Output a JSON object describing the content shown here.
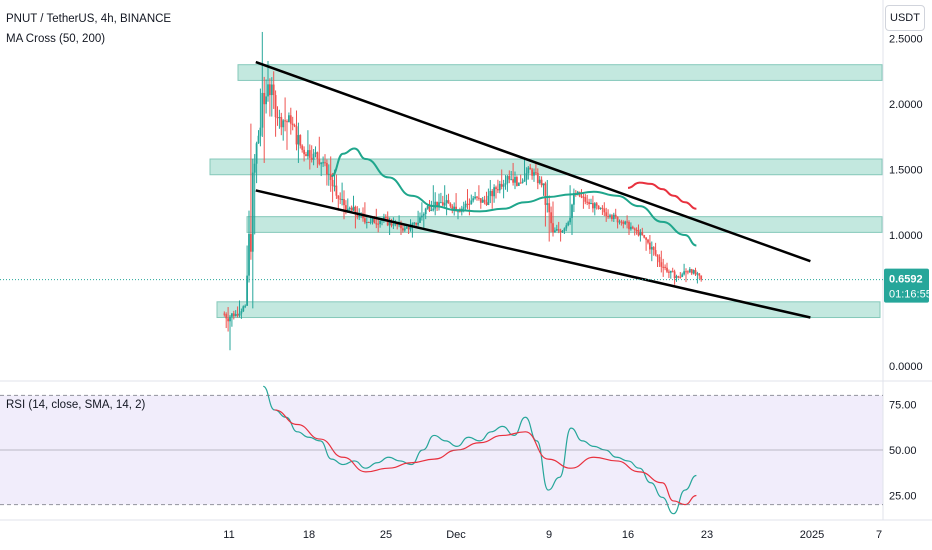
{
  "header": {
    "symbol": "PNUT / TetherUS, 4h, BINANCE",
    "indicator": "MA Cross (50, 200)",
    "currency_button": "USDT"
  },
  "rsi_panel": {
    "label": "RSI (14, close, SMA, 14, 2)"
  },
  "price_badge": {
    "price": "0.6592",
    "countdown": "01:16:55"
  },
  "colors": {
    "bull": "#26a69a",
    "bear": "#ef5350",
    "ma50": "#1fa68c",
    "ma200": "#e8313e",
    "zone": "#b9e4da",
    "zone_border": "#6fbfae",
    "rsi_line": "#26a69a",
    "rsi_ma": "#e8313e",
    "rsi_band": "#f1edfb",
    "trendline": "#000000"
  },
  "chart_data": [
    {
      "type": "candlestick",
      "title": "PNUT / TetherUS, 4h, BINANCE",
      "y_axis": {
        "ticks": [
          0.0,
          0.5,
          1.0,
          1.5,
          2.0,
          2.5
        ],
        "tick_labels": [
          "0.0000",
          "",
          "1.0000",
          "1.5000",
          "2.0000",
          "2.5000"
        ]
      },
      "x_axis": {
        "tick_labels": [
          "11",
          "18",
          "25",
          "Dec",
          "9",
          "16",
          "23",
          "2025",
          "7"
        ]
      },
      "last_price": 0.6592,
      "ohlc_approx_daily": [
        {
          "date": "Nov 11",
          "o": 0.4,
          "h": 0.45,
          "l": 0.12,
          "c": 0.38
        },
        {
          "date": "Nov 12",
          "o": 0.38,
          "h": 0.5,
          "l": 0.36,
          "c": 0.46
        },
        {
          "date": "Nov 13",
          "o": 0.46,
          "h": 1.85,
          "l": 0.44,
          "c": 1.7
        },
        {
          "date": "Nov 14",
          "o": 1.7,
          "h": 2.55,
          "l": 1.55,
          "c": 2.15
        },
        {
          "date": "Nov 15",
          "o": 2.15,
          "h": 2.25,
          "l": 1.75,
          "c": 1.9
        },
        {
          "date": "Nov 16",
          "o": 1.9,
          "h": 2.05,
          "l": 1.65,
          "c": 1.85
        },
        {
          "date": "Nov 17",
          "o": 1.85,
          "h": 1.95,
          "l": 1.55,
          "c": 1.65
        },
        {
          "date": "Nov 18",
          "o": 1.65,
          "h": 1.8,
          "l": 1.5,
          "c": 1.62
        },
        {
          "date": "Nov 19",
          "o": 1.62,
          "h": 1.75,
          "l": 1.45,
          "c": 1.55
        },
        {
          "date": "Nov 20",
          "o": 1.55,
          "h": 1.6,
          "l": 1.25,
          "c": 1.3
        },
        {
          "date": "Nov 21",
          "o": 1.3,
          "h": 1.4,
          "l": 1.12,
          "c": 1.2
        },
        {
          "date": "Nov 22",
          "o": 1.2,
          "h": 1.3,
          "l": 1.05,
          "c": 1.15
        },
        {
          "date": "Nov 23",
          "o": 1.15,
          "h": 1.25,
          "l": 1.05,
          "c": 1.1
        },
        {
          "date": "Nov 24",
          "o": 1.1,
          "h": 1.2,
          "l": 1.02,
          "c": 1.12
        },
        {
          "date": "Nov 25",
          "o": 1.12,
          "h": 1.18,
          "l": 1.0,
          "c": 1.08
        },
        {
          "date": "Nov 26",
          "o": 1.08,
          "h": 1.15,
          "l": 1.0,
          "c": 1.05
        },
        {
          "date": "Nov 27",
          "o": 1.05,
          "h": 1.12,
          "l": 0.98,
          "c": 1.08
        },
        {
          "date": "Nov 28",
          "o": 1.08,
          "h": 1.25,
          "l": 1.05,
          "c": 1.22
        },
        {
          "date": "Nov 29",
          "o": 1.22,
          "h": 1.38,
          "l": 1.15,
          "c": 1.25
        },
        {
          "date": "Nov 30",
          "o": 1.25,
          "h": 1.38,
          "l": 1.15,
          "c": 1.22
        },
        {
          "date": "Dec 1",
          "o": 1.22,
          "h": 1.32,
          "l": 1.12,
          "c": 1.2
        },
        {
          "date": "Dec 2",
          "o": 1.2,
          "h": 1.35,
          "l": 1.15,
          "c": 1.28
        },
        {
          "date": "Dec 3",
          "o": 1.28,
          "h": 1.38,
          "l": 1.2,
          "c": 1.25
        },
        {
          "date": "Dec 4",
          "o": 1.25,
          "h": 1.42,
          "l": 1.2,
          "c": 1.35
        },
        {
          "date": "Dec 5",
          "o": 1.35,
          "h": 1.5,
          "l": 1.28,
          "c": 1.45
        },
        {
          "date": "Dec 6",
          "o": 1.45,
          "h": 1.55,
          "l": 1.35,
          "c": 1.4
        },
        {
          "date": "Dec 7",
          "o": 1.4,
          "h": 1.58,
          "l": 1.38,
          "c": 1.5
        },
        {
          "date": "Dec 8",
          "o": 1.5,
          "h": 1.56,
          "l": 1.35,
          "c": 1.38
        },
        {
          "date": "Dec 9",
          "o": 1.38,
          "h": 1.42,
          "l": 0.95,
          "c": 1.02
        },
        {
          "date": "Dec 10",
          "o": 1.02,
          "h": 1.1,
          "l": 0.95,
          "c": 1.05
        },
        {
          "date": "Dec 11",
          "o": 1.05,
          "h": 1.38,
          "l": 1.0,
          "c": 1.32
        },
        {
          "date": "Dec 12",
          "o": 1.32,
          "h": 1.35,
          "l": 1.2,
          "c": 1.25
        },
        {
          "date": "Dec 13",
          "o": 1.25,
          "h": 1.3,
          "l": 1.15,
          "c": 1.2
        },
        {
          "date": "Dec 14",
          "o": 1.2,
          "h": 1.25,
          "l": 1.1,
          "c": 1.15
        },
        {
          "date": "Dec 15",
          "o": 1.15,
          "h": 1.2,
          "l": 1.05,
          "c": 1.1
        },
        {
          "date": "Dec 16",
          "o": 1.1,
          "h": 1.15,
          "l": 1.0,
          "c": 1.05
        },
        {
          "date": "Dec 17",
          "o": 1.05,
          "h": 1.08,
          "l": 0.95,
          "c": 0.98
        },
        {
          "date": "Dec 18",
          "o": 0.98,
          "h": 1.0,
          "l": 0.8,
          "c": 0.85
        },
        {
          "date": "Dec 19",
          "o": 0.85,
          "h": 0.88,
          "l": 0.68,
          "c": 0.72
        },
        {
          "date": "Dec 20",
          "o": 0.72,
          "h": 0.75,
          "l": 0.62,
          "c": 0.68
        },
        {
          "date": "Dec 21",
          "o": 0.68,
          "h": 0.78,
          "l": 0.64,
          "c": 0.74
        },
        {
          "date": "Dec 22",
          "o": 0.74,
          "h": 0.75,
          "l": 0.63,
          "c": 0.6592
        }
      ],
      "moving_averages": {
        "ma50": [
          {
            "date": "Nov 20",
            "value": 1.45
          },
          {
            "date": "Nov 21",
            "value": 1.62
          },
          {
            "date": "Nov 22",
            "value": 1.66
          },
          {
            "date": "Nov 23",
            "value": 1.58
          },
          {
            "date": "Nov 25",
            "value": 1.44
          },
          {
            "date": "Nov 27",
            "value": 1.3
          },
          {
            "date": "Nov 29",
            "value": 1.22
          },
          {
            "date": "Dec 1",
            "value": 1.19
          },
          {
            "date": "Dec 3",
            "value": 1.18
          },
          {
            "date": "Dec 5",
            "value": 1.2
          },
          {
            "date": "Dec 7",
            "value": 1.25
          },
          {
            "date": "Dec 9",
            "value": 1.29
          },
          {
            "date": "Dec 11",
            "value": 1.31
          },
          {
            "date": "Dec 13",
            "value": 1.33
          },
          {
            "date": "Dec 15",
            "value": 1.3
          },
          {
            "date": "Dec 17",
            "value": 1.22
          },
          {
            "date": "Dec 19",
            "value": 1.1
          },
          {
            "date": "Dec 21",
            "value": 1.0
          },
          {
            "date": "Dec 22",
            "value": 0.92
          }
        ],
        "ma200": [
          {
            "date": "Dec 16",
            "value": 1.36
          },
          {
            "date": "Dec 17",
            "value": 1.4
          },
          {
            "date": "Dec 18",
            "value": 1.39
          },
          {
            "date": "Dec 19",
            "value": 1.35
          },
          {
            "date": "Dec 20",
            "value": 1.3
          },
          {
            "date": "Dec 21",
            "value": 1.25
          },
          {
            "date": "Dec 22",
            "value": 1.2
          }
        ]
      },
      "zones": [
        {
          "low": 2.18,
          "high": 2.3
        },
        {
          "low": 1.46,
          "high": 1.58
        },
        {
          "low": 1.02,
          "high": 1.14
        },
        {
          "low": 0.37,
          "high": 0.49
        }
      ],
      "trendlines": [
        {
          "from": {
            "date": "Nov 13",
            "value": 2.32
          },
          "to": {
            "date": "Jan 1",
            "value": 0.8
          }
        },
        {
          "from": {
            "date": "Nov 13",
            "value": 1.34
          },
          "to": {
            "date": "Jan 1",
            "value": 0.37
          }
        }
      ]
    },
    {
      "type": "line",
      "title": "RSI (14, close, SMA, 14, 2)",
      "y_axis": {
        "tick_labels": [
          "75.00",
          "50.00",
          "25.00"
        ],
        "ticks": [
          75,
          50,
          25
        ],
        "band": [
          20,
          80
        ]
      },
      "series": [
        {
          "values": [
            {
              "date": "Nov 14",
              "value": 85
            },
            {
              "date": "Nov 15",
              "value": 72
            },
            {
              "date": "Nov 16",
              "value": 68
            },
            {
              "date": "Nov 17",
              "value": 60
            },
            {
              "date": "Nov 18",
              "value": 57
            },
            {
              "date": "Nov 19",
              "value": 55
            },
            {
              "date": "Nov 20",
              "value": 45
            },
            {
              "date": "Nov 21",
              "value": 42
            },
            {
              "date": "Nov 22",
              "value": 44
            },
            {
              "date": "Nov 23",
              "value": 40
            },
            {
              "date": "Nov 24",
              "value": 43
            },
            {
              "date": "Nov 25",
              "value": 46
            },
            {
              "date": "Nov 26",
              "value": 44
            },
            {
              "date": "Nov 27",
              "value": 42
            },
            {
              "date": "Nov 28",
              "value": 50
            },
            {
              "date": "Nov 29",
              "value": 58
            },
            {
              "date": "Nov 30",
              "value": 55
            },
            {
              "date": "Dec 1",
              "value": 52
            },
            {
              "date": "Dec 2",
              "value": 57
            },
            {
              "date": "Dec 3",
              "value": 55
            },
            {
              "date": "Dec 4",
              "value": 60
            },
            {
              "date": "Dec 5",
              "value": 63
            },
            {
              "date": "Dec 6",
              "value": 58
            },
            {
              "date": "Dec 7",
              "value": 68
            },
            {
              "date": "Dec 8",
              "value": 55
            },
            {
              "date": "Dec 9",
              "value": 28
            },
            {
              "date": "Dec 10",
              "value": 35
            },
            {
              "date": "Dec 11",
              "value": 62
            },
            {
              "date": "Dec 12",
              "value": 55
            },
            {
              "date": "Dec 13",
              "value": 52
            },
            {
              "date": "Dec 14",
              "value": 50
            },
            {
              "date": "Dec 15",
              "value": 46
            },
            {
              "date": "Dec 16",
              "value": 44
            },
            {
              "date": "Dec 17",
              "value": 40
            },
            {
              "date": "Dec 18",
              "value": 32
            },
            {
              "date": "Dec 19",
              "value": 24
            },
            {
              "date": "Dec 20",
              "value": 15
            },
            {
              "date": "Dec 21",
              "value": 28
            },
            {
              "date": "Dec 22",
              "value": 36
            }
          ]
        },
        {
          "values": [
            {
              "date": "Nov 15",
              "value": 72
            },
            {
              "date": "Nov 17",
              "value": 64
            },
            {
              "date": "Nov 19",
              "value": 56
            },
            {
              "date": "Nov 21",
              "value": 46
            },
            {
              "date": "Nov 23",
              "value": 38
            },
            {
              "date": "Nov 25",
              "value": 40
            },
            {
              "date": "Nov 27",
              "value": 43
            },
            {
              "date": "Nov 29",
              "value": 45
            },
            {
              "date": "Dec 1",
              "value": 50
            },
            {
              "date": "Dec 3",
              "value": 54
            },
            {
              "date": "Dec 5",
              "value": 58
            },
            {
              "date": "Dec 7",
              "value": 60
            },
            {
              "date": "Dec 9",
              "value": 45
            },
            {
              "date": "Dec 11",
              "value": 40
            },
            {
              "date": "Dec 13",
              "value": 46
            },
            {
              "date": "Dec 15",
              "value": 44
            },
            {
              "date": "Dec 17",
              "value": 38
            },
            {
              "date": "Dec 19",
              "value": 32
            },
            {
              "date": "Dec 20",
              "value": 22
            },
            {
              "date": "Dec 21",
              "value": 20
            },
            {
              "date": "Dec 22",
              "value": 25
            }
          ]
        }
      ]
    }
  ]
}
